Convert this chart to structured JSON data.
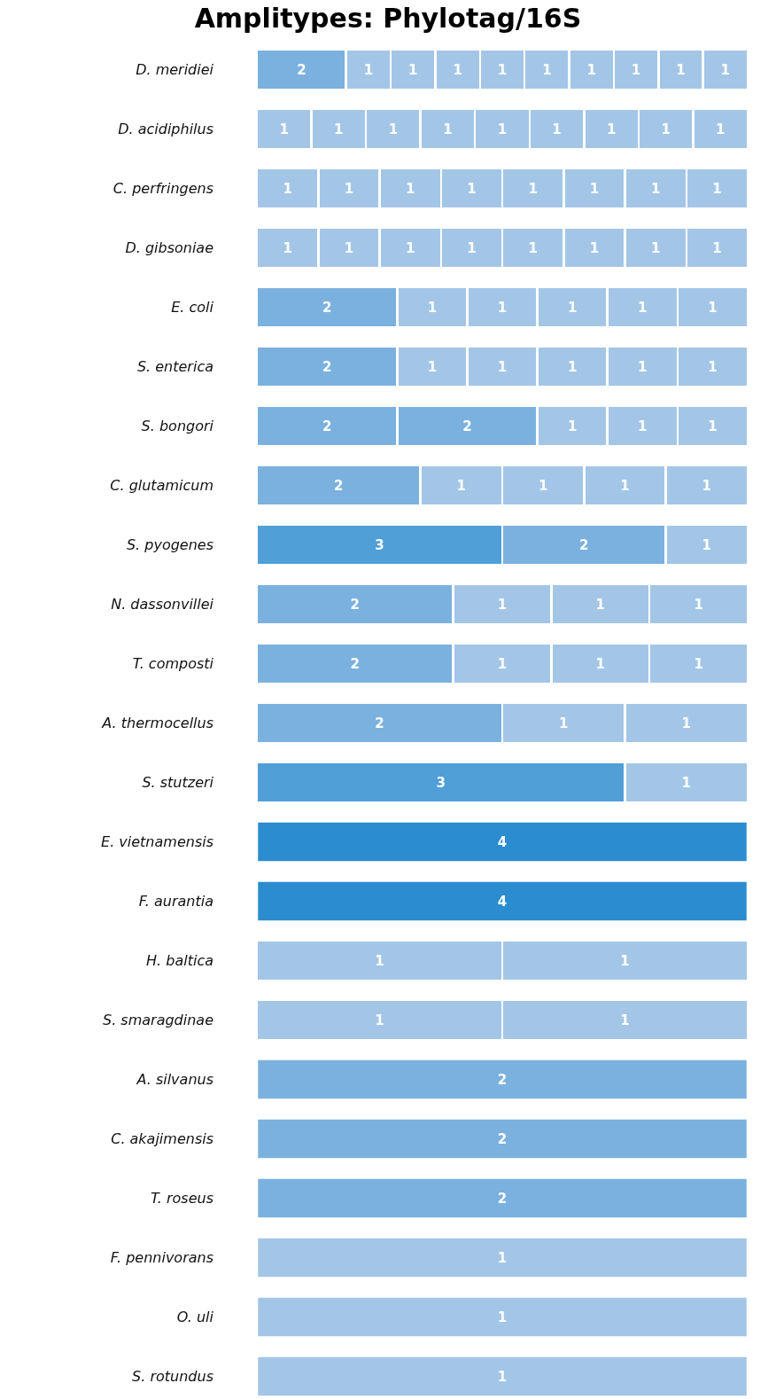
{
  "chart_data": [
    {
      "type": "bar",
      "title": "Amplitypes: Phylotag/16S",
      "orientation": "horizontal",
      "stacked": true,
      "data_labels": true,
      "categories": [
        "D. meridiei"
      ],
      "series": [
        {
          "values": [
            2
          ],
          "color": "#7bb1de"
        },
        {
          "values": [
            1
          ],
          "color": "#a3c6e7"
        },
        {
          "values": [
            1
          ],
          "color": "#a3c6e7"
        },
        {
          "values": [
            1
          ],
          "color": "#a3c6e7"
        },
        {
          "values": [
            1
          ],
          "color": "#a3c6e7"
        },
        {
          "values": [
            1
          ],
          "color": "#a3c6e7"
        },
        {
          "values": [
            1
          ],
          "color": "#a3c6e7"
        },
        {
          "values": [
            1
          ],
          "color": "#a3c6e7"
        },
        {
          "values": [
            1
          ],
          "color": "#a3c6e7"
        },
        {
          "values": [
            1
          ],
          "color": "#a3c6e7"
        }
      ]
    },
    {
      "type": "bar",
      "orientation": "horizontal",
      "stacked": true,
      "data_labels": true,
      "categories": [
        "D. acidiphilus"
      ],
      "series": [
        {
          "values": [
            1
          ],
          "color": "#a3c6e7"
        },
        {
          "values": [
            1
          ],
          "color": "#a3c6e7"
        },
        {
          "values": [
            1
          ],
          "color": "#a3c6e7"
        },
        {
          "values": [
            1
          ],
          "color": "#a3c6e7"
        },
        {
          "values": [
            1
          ],
          "color": "#a3c6e7"
        },
        {
          "values": [
            1
          ],
          "color": "#a3c6e7"
        },
        {
          "values": [
            1
          ],
          "color": "#a3c6e7"
        },
        {
          "values": [
            1
          ],
          "color": "#a3c6e7"
        },
        {
          "values": [
            1
          ],
          "color": "#a3c6e7"
        }
      ]
    },
    {
      "type": "bar",
      "orientation": "horizontal",
      "stacked": true,
      "data_labels": true,
      "categories": [
        "C. perfringens"
      ],
      "series": [
        {
          "values": [
            1
          ],
          "color": "#a3c6e7"
        },
        {
          "values": [
            1
          ],
          "color": "#a3c6e7"
        },
        {
          "values": [
            1
          ],
          "color": "#a3c6e7"
        },
        {
          "values": [
            1
          ],
          "color": "#a3c6e7"
        },
        {
          "values": [
            1
          ],
          "color": "#a3c6e7"
        },
        {
          "values": [
            1
          ],
          "color": "#a3c6e7"
        },
        {
          "values": [
            1
          ],
          "color": "#a3c6e7"
        },
        {
          "values": [
            1
          ],
          "color": "#a3c6e7"
        }
      ]
    },
    {
      "type": "bar",
      "orientation": "horizontal",
      "stacked": true,
      "data_labels": true,
      "categories": [
        "D. gibsoniae"
      ],
      "series": [
        {
          "values": [
            1
          ],
          "color": "#a3c6e7"
        },
        {
          "values": [
            1
          ],
          "color": "#a3c6e7"
        },
        {
          "values": [
            1
          ],
          "color": "#a3c6e7"
        },
        {
          "values": [
            1
          ],
          "color": "#a3c6e7"
        },
        {
          "values": [
            1
          ],
          "color": "#a3c6e7"
        },
        {
          "values": [
            1
          ],
          "color": "#a3c6e7"
        },
        {
          "values": [
            1
          ],
          "color": "#a3c6e7"
        },
        {
          "values": [
            1
          ],
          "color": "#a3c6e7"
        }
      ]
    },
    {
      "type": "bar",
      "orientation": "horizontal",
      "stacked": true,
      "data_labels": true,
      "categories": [
        "E. coli"
      ],
      "series": [
        {
          "values": [
            2
          ],
          "color": "#7bb1de"
        },
        {
          "values": [
            1
          ],
          "color": "#a3c6e7"
        },
        {
          "values": [
            1
          ],
          "color": "#a3c6e7"
        },
        {
          "values": [
            1
          ],
          "color": "#a3c6e7"
        },
        {
          "values": [
            1
          ],
          "color": "#a3c6e7"
        },
        {
          "values": [
            1
          ],
          "color": "#a3c6e7"
        }
      ]
    },
    {
      "type": "bar",
      "orientation": "horizontal",
      "stacked": true,
      "data_labels": true,
      "categories": [
        "S. enterica"
      ],
      "series": [
        {
          "values": [
            2
          ],
          "color": "#7bb1de"
        },
        {
          "values": [
            1
          ],
          "color": "#a3c6e7"
        },
        {
          "values": [
            1
          ],
          "color": "#a3c6e7"
        },
        {
          "values": [
            1
          ],
          "color": "#a3c6e7"
        },
        {
          "values": [
            1
          ],
          "color": "#a3c6e7"
        },
        {
          "values": [
            1
          ],
          "color": "#a3c6e7"
        }
      ]
    },
    {
      "type": "bar",
      "orientation": "horizontal",
      "stacked": true,
      "data_labels": true,
      "categories": [
        "S. bongori"
      ],
      "series": [
        {
          "values": [
            2
          ],
          "color": "#7bb1de"
        },
        {
          "values": [
            2
          ],
          "color": "#7bb1de"
        },
        {
          "values": [
            1
          ],
          "color": "#a3c6e7"
        },
        {
          "values": [
            1
          ],
          "color": "#a3c6e7"
        },
        {
          "values": [
            1
          ],
          "color": "#a3c6e7"
        }
      ]
    },
    {
      "type": "bar",
      "orientation": "horizontal",
      "stacked": true,
      "data_labels": true,
      "categories": [
        "C. glutamicum"
      ],
      "series": [
        {
          "values": [
            2
          ],
          "color": "#7bb1de"
        },
        {
          "values": [
            1
          ],
          "color": "#a3c6e7"
        },
        {
          "values": [
            1
          ],
          "color": "#a3c6e7"
        },
        {
          "values": [
            1
          ],
          "color": "#a3c6e7"
        },
        {
          "values": [
            1
          ],
          "color": "#a3c6e7"
        }
      ]
    },
    {
      "type": "bar",
      "orientation": "horizontal",
      "stacked": true,
      "data_labels": true,
      "categories": [
        "S. pyogenes"
      ],
      "series": [
        {
          "values": [
            3
          ],
          "color": "#509fd7"
        },
        {
          "values": [
            2
          ],
          "color": "#7bb1de"
        },
        {
          "values": [
            1
          ],
          "color": "#a3c6e7"
        }
      ]
    },
    {
      "type": "bar",
      "orientation": "horizontal",
      "stacked": true,
      "data_labels": true,
      "categories": [
        "N. dassonvillei"
      ],
      "series": [
        {
          "values": [
            2
          ],
          "color": "#7bb1de"
        },
        {
          "values": [
            1
          ],
          "color": "#a3c6e7"
        },
        {
          "values": [
            1
          ],
          "color": "#a3c6e7"
        },
        {
          "values": [
            1
          ],
          "color": "#a3c6e7"
        }
      ]
    },
    {
      "type": "bar",
      "orientation": "horizontal",
      "stacked": true,
      "data_labels": true,
      "categories": [
        "T. composti"
      ],
      "series": [
        {
          "values": [
            2
          ],
          "color": "#7bb1de"
        },
        {
          "values": [
            1
          ],
          "color": "#a3c6e7"
        },
        {
          "values": [
            1
          ],
          "color": "#a3c6e7"
        },
        {
          "values": [
            1
          ],
          "color": "#a3c6e7"
        }
      ]
    },
    {
      "type": "bar",
      "orientation": "horizontal",
      "stacked": true,
      "data_labels": true,
      "categories": [
        "A. thermocellus"
      ],
      "series": [
        {
          "values": [
            2
          ],
          "color": "#7bb1de"
        },
        {
          "values": [
            1
          ],
          "color": "#a3c6e7"
        },
        {
          "values": [
            1
          ],
          "color": "#a3c6e7"
        }
      ]
    },
    {
      "type": "bar",
      "orientation": "horizontal",
      "stacked": true,
      "data_labels": true,
      "categories": [
        "S. stutzeri"
      ],
      "series": [
        {
          "values": [
            3
          ],
          "color": "#509fd7"
        },
        {
          "values": [
            1
          ],
          "color": "#a3c6e7"
        }
      ]
    },
    {
      "type": "bar",
      "orientation": "horizontal",
      "stacked": true,
      "data_labels": true,
      "categories": [
        "E. vietnamensis"
      ],
      "series": [
        {
          "values": [
            4
          ],
          "color": "#2b8ccf"
        }
      ]
    },
    {
      "type": "bar",
      "orientation": "horizontal",
      "stacked": true,
      "data_labels": true,
      "categories": [
        "F. aurantia"
      ],
      "series": [
        {
          "values": [
            4
          ],
          "color": "#2b8ccf"
        }
      ]
    },
    {
      "type": "bar",
      "orientation": "horizontal",
      "stacked": true,
      "data_labels": true,
      "categories": [
        "H. baltica"
      ],
      "series": [
        {
          "values": [
            1
          ],
          "color": "#a3c6e7"
        },
        {
          "values": [
            1
          ],
          "color": "#a3c6e7"
        }
      ]
    },
    {
      "type": "bar",
      "orientation": "horizontal",
      "stacked": true,
      "data_labels": true,
      "categories": [
        "S. smaragdinae"
      ],
      "series": [
        {
          "values": [
            1
          ],
          "color": "#a3c6e7"
        },
        {
          "values": [
            1
          ],
          "color": "#a3c6e7"
        }
      ]
    },
    {
      "type": "bar",
      "orientation": "horizontal",
      "stacked": true,
      "data_labels": true,
      "categories": [
        "A. silvanus"
      ],
      "series": [
        {
          "values": [
            2
          ],
          "color": "#7bb1de"
        }
      ]
    },
    {
      "type": "bar",
      "orientation": "horizontal",
      "stacked": true,
      "data_labels": true,
      "categories": [
        "C. akajimensis"
      ],
      "series": [
        {
          "values": [
            2
          ],
          "color": "#7bb1de"
        }
      ]
    },
    {
      "type": "bar",
      "orientation": "horizontal",
      "stacked": true,
      "data_labels": true,
      "categories": [
        "T. roseus"
      ],
      "series": [
        {
          "values": [
            2
          ],
          "color": "#7bb1de"
        }
      ]
    },
    {
      "type": "bar",
      "orientation": "horizontal",
      "stacked": true,
      "data_labels": true,
      "categories": [
        "F. pennivorans"
      ],
      "series": [
        {
          "values": [
            1
          ],
          "color": "#a3c6e7"
        }
      ]
    },
    {
      "type": "bar",
      "orientation": "horizontal",
      "stacked": true,
      "data_labels": true,
      "categories": [
        "O. uli"
      ],
      "series": [
        {
          "values": [
            1
          ],
          "color": "#a3c6e7"
        }
      ]
    },
    {
      "type": "bar",
      "orientation": "horizontal",
      "stacked": true,
      "data_labels": true,
      "categories": [
        "S. rotundus"
      ],
      "series": [
        {
          "values": [
            1
          ],
          "color": "#a3c6e7"
        }
      ]
    }
  ]
}
